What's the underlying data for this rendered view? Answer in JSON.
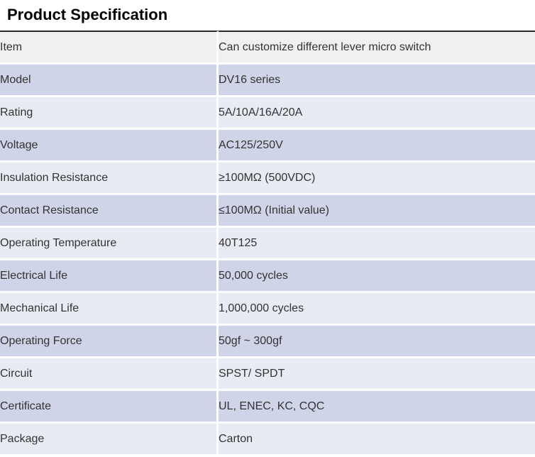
{
  "title": "Product Specification",
  "colors": {
    "header_row_bg": "#f0f0ee",
    "row_dark_bg": "#cfd4e8",
    "row_light_bg": "#e9ebf4",
    "top_border": "#2b2b2b",
    "text": "#333333"
  },
  "table": {
    "rows": [
      {
        "label": "Item",
        "value": "Can customize different lever micro switch"
      },
      {
        "label": "Model",
        "value": "DV16 series"
      },
      {
        "label": "Rating",
        "value": "5A/10A/16A/20A"
      },
      {
        "label": "Voltage",
        "value": "AC125/250V"
      },
      {
        "label": "Insulation Resistance",
        "value": "≥100MΩ (500VDC)"
      },
      {
        "label": "Contact Resistance",
        "value": "≤100MΩ (Initial value)"
      },
      {
        "label": "Operating Temperature",
        "value": "40T125"
      },
      {
        "label": "Electrical Life",
        "value": "50,000 cycles"
      },
      {
        "label": "Mechanical Life",
        "value": "1,000,000 cycles"
      },
      {
        "label": "Operating Force",
        "value": "50gf ~ 300gf"
      },
      {
        "label": "Circuit",
        "value": "SPST/ SPDT"
      },
      {
        "label": "Certificate",
        "value": "UL, ENEC, KC, CQC"
      },
      {
        "label": "Package",
        "value": "Carton"
      }
    ]
  }
}
